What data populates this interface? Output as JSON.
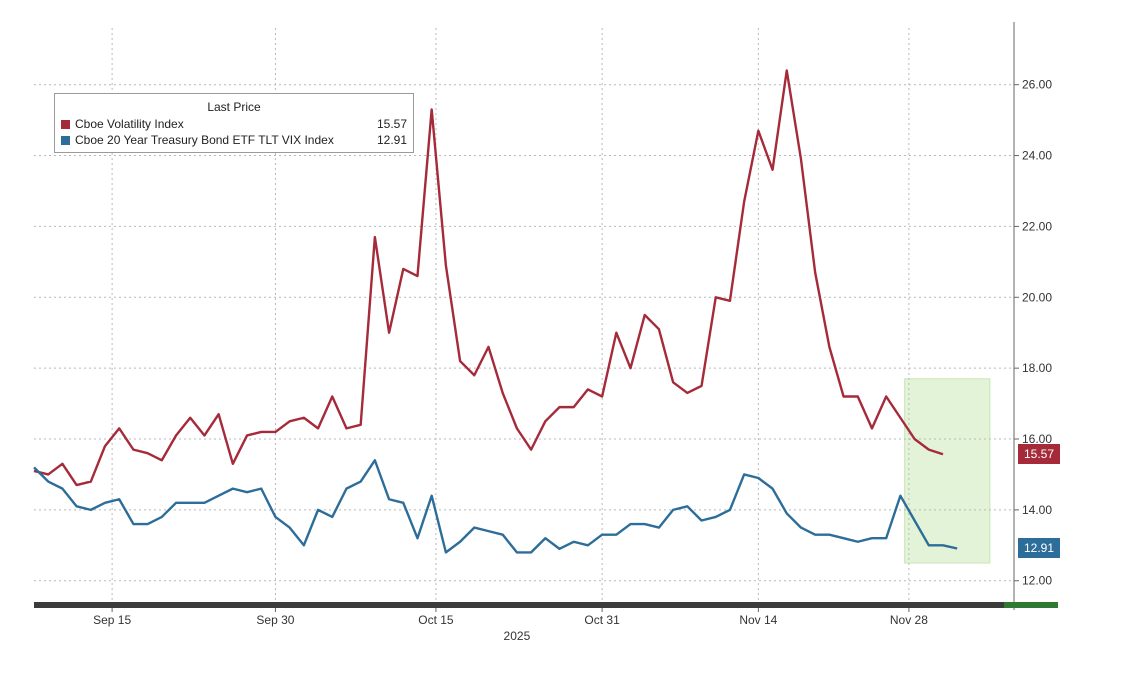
{
  "chart_data": {
    "type": "line",
    "xlabel": "2025",
    "ylabel": "",
    "ylim": [
      11.4,
      27.6
    ],
    "xlim": [
      0,
      69
    ],
    "x_ticks": [
      {
        "label": "Sep 15",
        "x": 5.5
      },
      {
        "label": "Sep 30",
        "x": 17
      },
      {
        "label": "Oct 15",
        "x": 28.3
      },
      {
        "label": "Oct 31",
        "x": 40
      },
      {
        "label": "Nov 14",
        "x": 51
      },
      {
        "label": "Nov 28",
        "x": 61.6
      }
    ],
    "y_ticks": [
      12.0,
      14.0,
      16.0,
      18.0,
      20.0,
      22.0,
      24.0,
      26.0
    ],
    "y_tick_labels": [
      "12.00",
      "14.00",
      "16.00",
      "18.00",
      "20.00",
      "22.00",
      "24.00",
      "26.00"
    ],
    "legend": {
      "title": "Last Price",
      "placement": "top-left"
    },
    "highlight": {
      "x_range": [
        61.3,
        67.3
      ],
      "y_range": [
        12.5,
        17.7
      ],
      "color": "#e2f3d8"
    },
    "grid": true,
    "series": [
      {
        "name": "Cboe Volatility Index",
        "last": "15.57",
        "color": "#a52a3a",
        "values": [
          15.1,
          15.0,
          15.3,
          14.7,
          14.8,
          15.8,
          16.3,
          15.7,
          15.6,
          15.4,
          16.1,
          16.6,
          16.1,
          16.7,
          15.3,
          16.1,
          16.2,
          16.2,
          16.5,
          16.6,
          16.3,
          17.2,
          16.3,
          16.4,
          21.7,
          19.0,
          20.8,
          20.6,
          25.3,
          20.9,
          18.2,
          17.8,
          18.6,
          17.3,
          16.3,
          15.7,
          16.5,
          16.9,
          16.9,
          17.4,
          17.2,
          19.0,
          18.0,
          19.5,
          19.1,
          17.6,
          17.3,
          17.5,
          20.0,
          19.9,
          22.7,
          24.7,
          23.6,
          26.4,
          23.9,
          20.7,
          18.6,
          17.2,
          17.2,
          16.3,
          17.2,
          16.6,
          16.0,
          15.7,
          15.57
        ]
      },
      {
        "name": "Cboe 20 Year Treasury Bond ETF TLT VIX Index",
        "last": "12.91",
        "color": "#2d6d9a",
        "values": [
          15.2,
          14.8,
          14.6,
          14.1,
          14.0,
          14.2,
          14.3,
          13.6,
          13.6,
          13.8,
          14.2,
          14.2,
          14.2,
          14.4,
          14.6,
          14.5,
          14.6,
          13.8,
          13.5,
          13.0,
          14.0,
          13.8,
          14.6,
          14.8,
          15.4,
          14.3,
          14.2,
          13.2,
          14.4,
          12.8,
          13.1,
          13.5,
          13.4,
          13.3,
          12.8,
          12.8,
          13.2,
          12.9,
          13.1,
          13.0,
          13.3,
          13.3,
          13.6,
          13.6,
          13.5,
          14.0,
          14.1,
          13.7,
          13.8,
          14.0,
          15.0,
          14.9,
          14.6,
          13.9,
          13.5,
          13.3,
          13.3,
          13.2,
          13.1,
          13.2,
          13.2,
          14.4,
          13.7,
          13.0,
          13.0,
          12.91
        ]
      }
    ]
  }
}
